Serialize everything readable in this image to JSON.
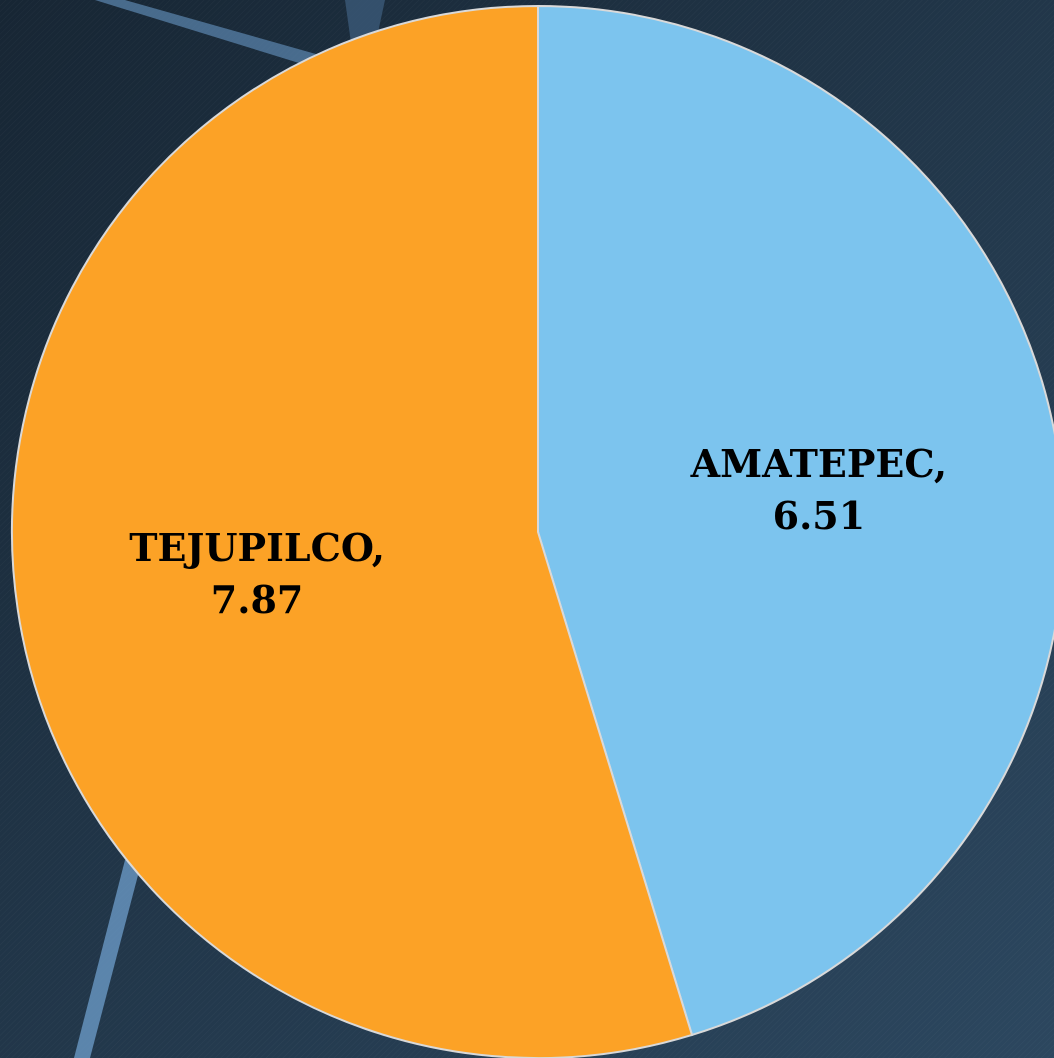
{
  "chart_data": {
    "type": "pie",
    "categories": [
      "AMATEPEC",
      "TEJUPILCO"
    ],
    "values": [
      6.51,
      7.87
    ],
    "value_labels": [
      "AMATEPEC, 6.51",
      "TEJUPILCO, 7.87"
    ],
    "colors": [
      "#7cc4ee",
      "#fca226"
    ],
    "start_angle": 0,
    "direction": "clockwise"
  }
}
